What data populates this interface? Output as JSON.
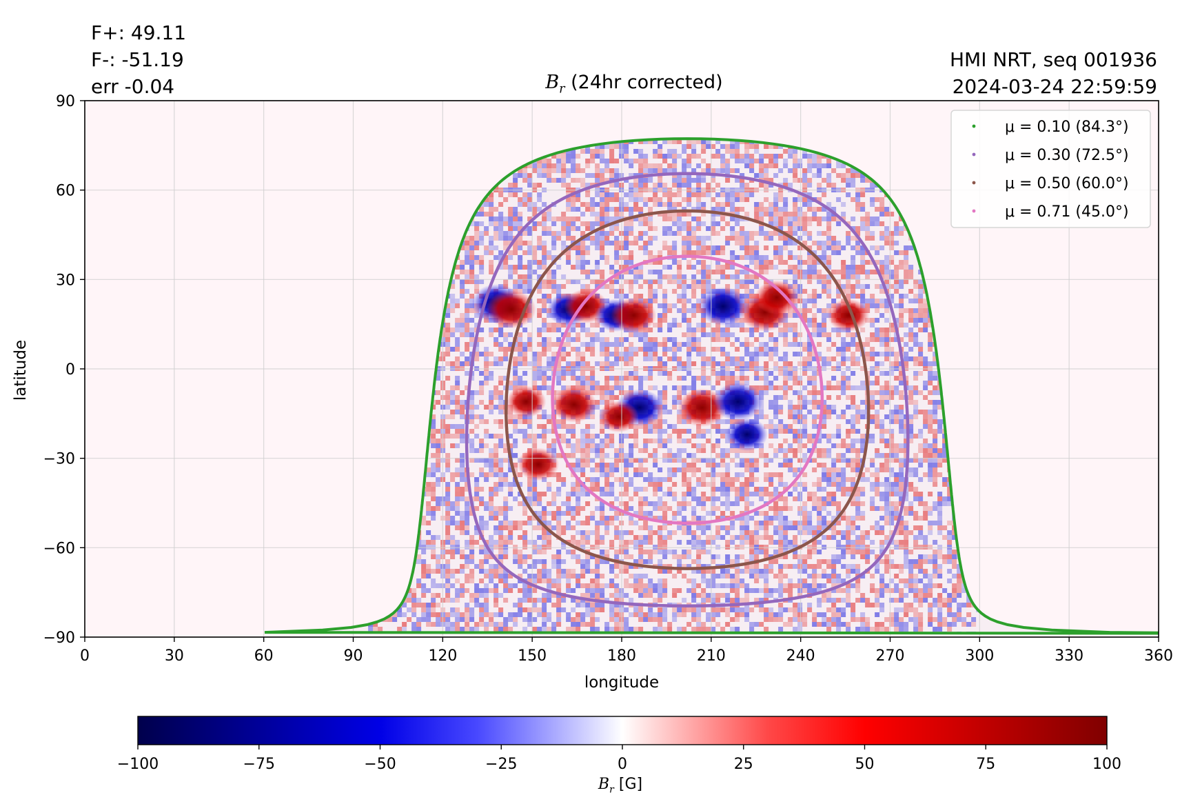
{
  "stats": {
    "f_plus": "F+: 49.11",
    "f_minus": "F-: -51.19",
    "err": "err -0.04"
  },
  "meta": {
    "instrument": "HMI NRT, seq 001936",
    "datetime": "2024-03-24 22:59:59"
  },
  "colors": {
    "negative_max": "#00004c",
    "negative": "#0000ff",
    "zero": "#ffffff",
    "positive": "#ff0000",
    "positive_max": "#800000",
    "background_map": "#fff5f8",
    "mu_0.10": "#2ca02c",
    "mu_0.30": "#9467bd",
    "mu_0.50": "#8c564b",
    "mu_0.71": "#e377c2",
    "grid": "#d0d0d0"
  },
  "chart_data": {
    "type": "heatmap",
    "title_symbol": "B",
    "title_subscript": "r",
    "title_suffix": " (24hr corrected)",
    "xlabel": "longitude",
    "ylabel": "latitude",
    "xlim": [
      0,
      360
    ],
    "ylim": [
      -90,
      90
    ],
    "grid": true,
    "x_ticks": [
      "0",
      "30",
      "60",
      "90",
      "120",
      "150",
      "180",
      "210",
      "240",
      "270",
      "300",
      "330",
      "360"
    ],
    "y_ticks": [
      "90",
      "60",
      "30",
      "0",
      "−30",
      "−60",
      "−90"
    ],
    "y_tick_values": [
      90,
      60,
      30,
      0,
      -30,
      -60,
      -90
    ],
    "x_tick_values": [
      0,
      30,
      60,
      90,
      120,
      150,
      180,
      210,
      240,
      270,
      300,
      330,
      360
    ],
    "disk_center": {
      "lon": 202,
      "lat": -7
    },
    "legend_position": "top-right",
    "series": [
      {
        "name": "μ = 0.10 (84.3°)",
        "mu": 0.1,
        "color_key": "mu_0.10"
      },
      {
        "name": "μ = 0.30 (72.5°)",
        "mu": 0.3,
        "color_key": "mu_0.30"
      },
      {
        "name": "μ = 0.50 (60.0°)",
        "mu": 0.5,
        "color_key": "mu_0.50"
      },
      {
        "name": "μ = 0.71 (45.0°)",
        "mu": 0.71,
        "color_key": "mu_0.71"
      }
    ],
    "active_regions": [
      {
        "lon": 138,
        "lat": 22,
        "polarity": "negative",
        "strength": 1.0
      },
      {
        "lon": 143,
        "lat": 20,
        "polarity": "positive",
        "strength": 1.0
      },
      {
        "lon": 162,
        "lat": 20,
        "polarity": "negative",
        "strength": 0.6
      },
      {
        "lon": 168,
        "lat": 21,
        "polarity": "positive",
        "strength": 0.7
      },
      {
        "lon": 178,
        "lat": 18,
        "polarity": "negative",
        "strength": 0.6
      },
      {
        "lon": 184,
        "lat": 18,
        "polarity": "positive",
        "strength": 0.8
      },
      {
        "lon": 214,
        "lat": 21,
        "polarity": "negative",
        "strength": 1.0
      },
      {
        "lon": 228,
        "lat": 19,
        "polarity": "positive",
        "strength": 1.0
      },
      {
        "lon": 256,
        "lat": 18,
        "polarity": "positive",
        "strength": 0.6
      },
      {
        "lon": 148,
        "lat": -11,
        "polarity": "positive",
        "strength": 0.5
      },
      {
        "lon": 164,
        "lat": -12,
        "polarity": "positive",
        "strength": 0.8
      },
      {
        "lon": 186,
        "lat": -13,
        "polarity": "negative",
        "strength": 0.9
      },
      {
        "lon": 179,
        "lat": -16,
        "polarity": "positive",
        "strength": 0.5
      },
      {
        "lon": 207,
        "lat": -13,
        "polarity": "positive",
        "strength": 1.0
      },
      {
        "lon": 219,
        "lat": -11,
        "polarity": "negative",
        "strength": 1.0
      },
      {
        "lon": 222,
        "lat": -22,
        "polarity": "negative",
        "strength": 0.6
      },
      {
        "lon": 152,
        "lat": -32,
        "polarity": "positive",
        "strength": 0.6
      },
      {
        "lon": 232,
        "lat": 24,
        "polarity": "positive",
        "strength": 0.7
      }
    ],
    "colorbar": {
      "range": [
        -100,
        100
      ],
      "ticks": [
        "−100",
        "−75",
        "−50",
        "−25",
        "0",
        "25",
        "50",
        "75",
        "100"
      ],
      "tick_values": [
        -100,
        -75,
        -50,
        -25,
        0,
        25,
        50,
        75,
        100
      ],
      "label_symbol": "B",
      "label_subscript": "r",
      "label_unit": " [G]",
      "colormap": "seismic"
    }
  }
}
